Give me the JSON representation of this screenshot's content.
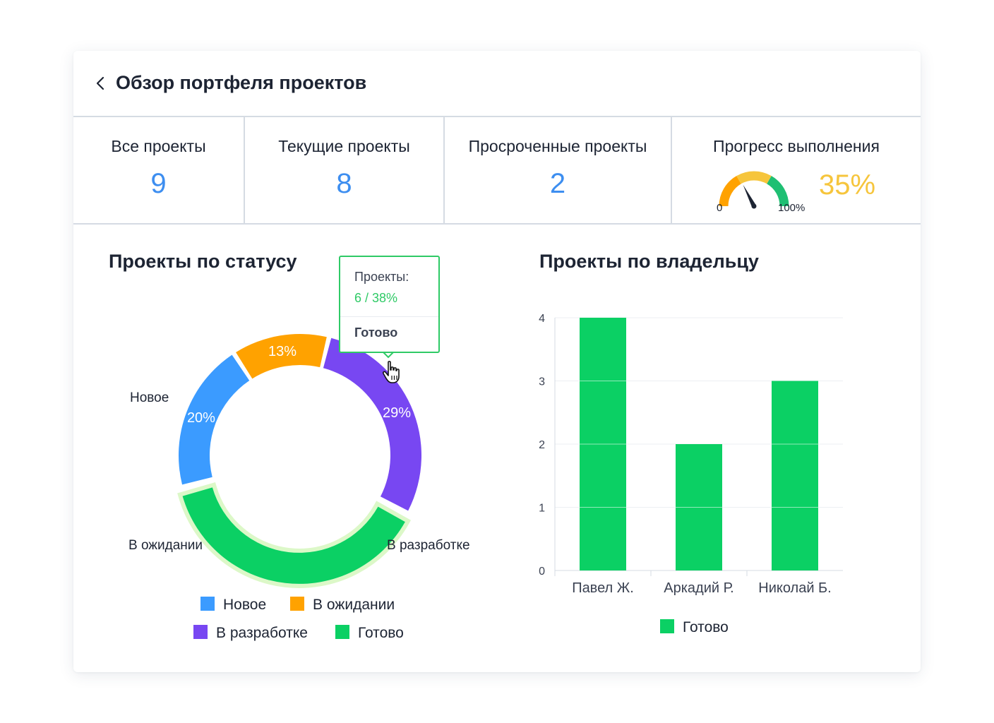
{
  "header": {
    "title": "Обзор портфеля проектов"
  },
  "stats": [
    {
      "label": "Все проекты",
      "value": "9"
    },
    {
      "label": "Текущие проекты",
      "value": "8"
    },
    {
      "label": "Просроченные проекты",
      "value": "2"
    }
  ],
  "progress": {
    "label": "Прогресс выполнения",
    "value": "35%",
    "fraction": 0.35,
    "min_label": "0",
    "max_label": "100%"
  },
  "colors": {
    "accent": "#3d8ef0",
    "new": "#3b9bff",
    "waiting": "#ffa200",
    "dev": "#7847f2",
    "done": "#0bd064",
    "gauge_yellow": "#f6c53c"
  },
  "chart_data": [
    {
      "type": "pie",
      "title": "Проекты по статусу",
      "slices": [
        {
          "name": "Новое",
          "percent": 20,
          "label": "20%"
        },
        {
          "name": "В ожидании",
          "percent": 13,
          "label": "13%"
        },
        {
          "name": "В разработке",
          "percent": 29,
          "label": "29%"
        },
        {
          "name": "Готово",
          "percent": 38,
          "label": ""
        }
      ],
      "tooltip": {
        "caption": "Проекты:",
        "value": "6 / 38%",
        "name": "Готово"
      },
      "legend": [
        "Новое",
        "В ожидании",
        "В разработке",
        "Готово"
      ]
    },
    {
      "type": "bar",
      "title": "Проекты по владельцу",
      "categories": [
        "Павел Ж.",
        "Аркадий Р.",
        "Николай Б."
      ],
      "series": [
        {
          "name": "Готово",
          "values": [
            4,
            2,
            3
          ]
        }
      ],
      "yticks": [
        "0",
        "1",
        "2",
        "3",
        "4"
      ],
      "ylim": [
        0,
        4
      ],
      "grid": true,
      "legend": "bottom"
    }
  ]
}
